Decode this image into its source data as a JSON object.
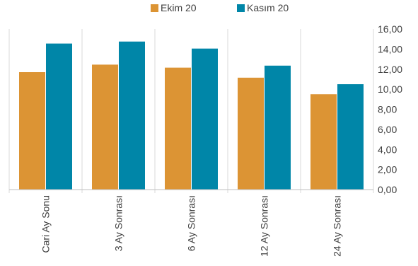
{
  "chart_data": {
    "type": "bar",
    "categories": [
      "Cari Ay Sonu",
      "3 Ay Sonrası",
      "6 Ay Sonrası",
      "12 Ay Sonrası",
      "24 Ay Sonrası"
    ],
    "series": [
      {
        "name": "Ekim 20",
        "color": "#DC9434",
        "values": [
          11.7,
          12.45,
          12.15,
          11.15,
          9.5
        ]
      },
      {
        "name": "Kasım 20",
        "color": "#0086A8",
        "values": [
          14.55,
          14.75,
          14.05,
          12.35,
          10.5
        ]
      }
    ],
    "ylim": [
      0,
      16
    ],
    "yticks": [
      "0,00",
      "2,00",
      "4,00",
      "6,00",
      "8,00",
      "10,00",
      "12,00",
      "14,00",
      "16,00"
    ],
    "y_axis_side": "right",
    "grid": "vertical separators between categories",
    "legend_position": "top-center",
    "title": "",
    "xlabel": "",
    "ylabel": ""
  }
}
